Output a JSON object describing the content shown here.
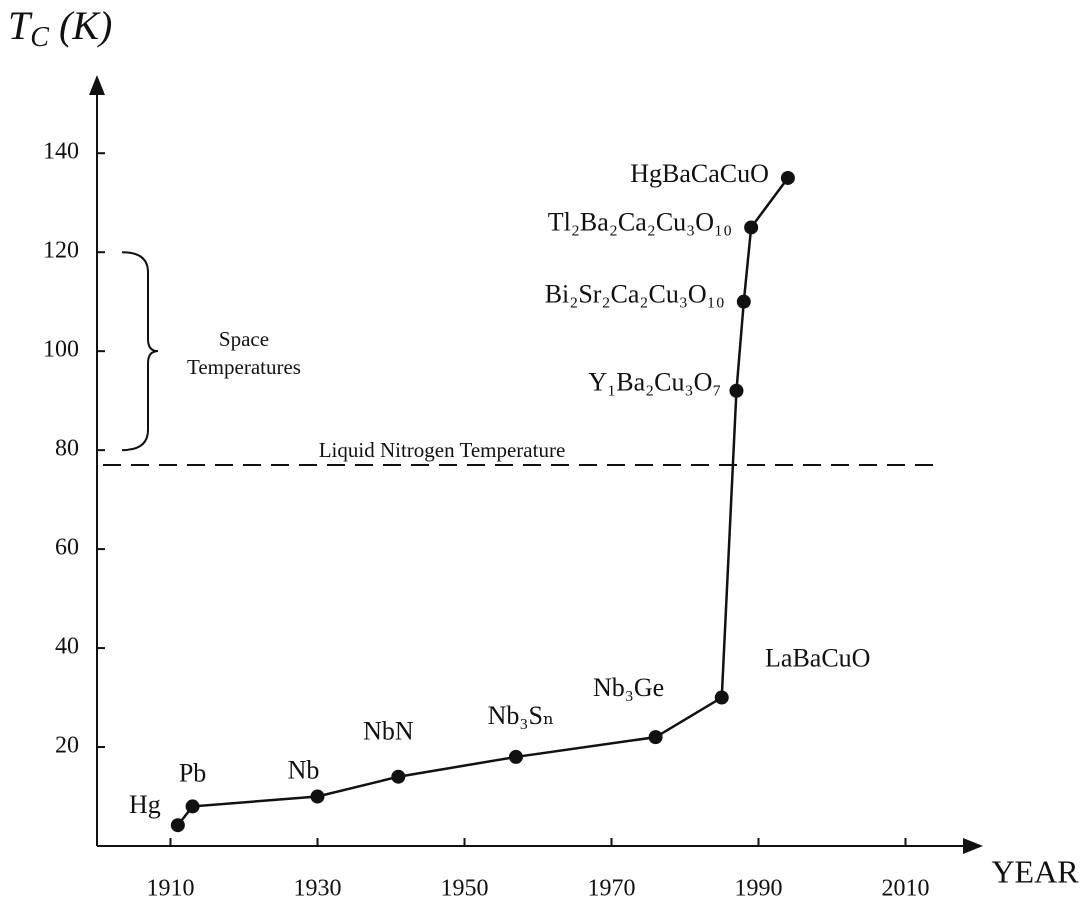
{
  "chart_data": {
    "type": "line",
    "y_label": "TC (K)",
    "x_label": "YEAR",
    "x": [
      1911,
      1913,
      1930,
      1941,
      1957,
      1976,
      1985,
      1987,
      1988,
      1989,
      1994
    ],
    "values": [
      4.2,
      8,
      10,
      14,
      18,
      22,
      30,
      92,
      110,
      125,
      135
    ],
    "labels": [
      "Hg",
      "Pb",
      "Nb",
      "NbN",
      "Nb₃Sₙ",
      "Nb₃Ge",
      "LaBaCuO",
      "Y₁Ba₂Cu₃O₇",
      "Bi₂Sr₂Ca₂Cu₃O₁₀",
      "Tl₂Ba₂Ca₂Cu₃O₁₀",
      "HgBaCaCuO"
    ],
    "color": "#111111",
    "xlim": [
      1900,
      2020
    ],
    "ylim": [
      0,
      155
    ],
    "xticks": [
      1910,
      1930,
      1950,
      1970,
      1990,
      2010
    ],
    "yticks": [
      20,
      40,
      60,
      80,
      100,
      120,
      140
    ],
    "reference_line": {
      "value": 77,
      "label": "Liquid Nitrogen Temperature"
    },
    "range_annotation": {
      "range": [
        80,
        120
      ],
      "text": [
        "Space",
        "Temperatures"
      ]
    }
  }
}
